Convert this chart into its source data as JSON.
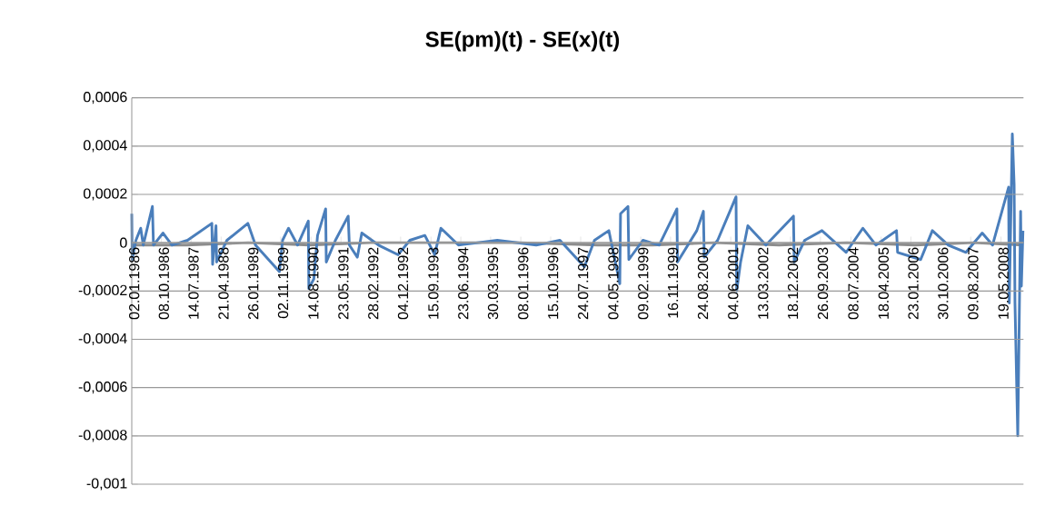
{
  "chart_data": {
    "type": "line",
    "title": "SE(pm)(t) - SE(x)(t)",
    "xlim": [
      "1986-01-02",
      "2008-12-17"
    ],
    "xticks": [
      {
        "value": "1986-01-02",
        "label": "02.01.1986"
      },
      {
        "value": "1986-10-08",
        "label": "08.10.1986"
      },
      {
        "value": "1987-07-14",
        "label": "14.07.1987"
      },
      {
        "value": "1988-04-21",
        "label": "21.04.1988"
      },
      {
        "value": "1989-01-26",
        "label": "26.01.1989"
      },
      {
        "value": "1989-11-02",
        "label": "02.11.1989"
      },
      {
        "value": "1990-08-14",
        "label": "14.08.1990"
      },
      {
        "value": "1991-05-23",
        "label": "23.05.1991"
      },
      {
        "value": "1992-02-28",
        "label": "28.02.1992"
      },
      {
        "value": "1992-12-04",
        "label": "04.12.1992"
      },
      {
        "value": "1993-09-15",
        "label": "15.09.1993"
      },
      {
        "value": "1994-06-23",
        "label": "23.06.1994"
      },
      {
        "value": "1995-03-30",
        "label": "30.03.1995"
      },
      {
        "value": "1996-01-08",
        "label": "08.01.1996"
      },
      {
        "value": "1996-10-15",
        "label": "15.10.1996"
      },
      {
        "value": "1997-07-24",
        "label": "24.07.1997"
      },
      {
        "value": "1998-05-04",
        "label": "04.05.1998"
      },
      {
        "value": "1999-02-09",
        "label": "09.02.1999"
      },
      {
        "value": "1999-11-16",
        "label": "16.11.1999"
      },
      {
        "value": "2000-08-24",
        "label": "24.08.2000"
      },
      {
        "value": "2001-06-04",
        "label": "04.06.2001"
      },
      {
        "value": "2002-03-13",
        "label": "13.03.2002"
      },
      {
        "value": "2002-12-18",
        "label": "18.12.2002"
      },
      {
        "value": "2003-09-26",
        "label": "26.09.2003"
      },
      {
        "value": "2004-07-08",
        "label": "08.07.2004"
      },
      {
        "value": "2005-04-18",
        "label": "18.04.2005"
      },
      {
        "value": "2006-01-23",
        "label": "23.01.2006"
      },
      {
        "value": "2006-10-30",
        "label": "30.10.2006"
      },
      {
        "value": "2007-08-09",
        "label": "09.08.2007"
      },
      {
        "value": "2008-05-19",
        "label": "19.05.2008"
      }
    ],
    "ylim": [
      -0.001,
      0.0006
    ],
    "yticks": [
      {
        "value": -0.001,
        "label": "-0,001"
      },
      {
        "value": -0.0008,
        "label": "-0,0008"
      },
      {
        "value": -0.0006,
        "label": "-0,0006"
      },
      {
        "value": -0.0004,
        "label": "-0,0004"
      },
      {
        "value": -0.0002,
        "label": "-0,0002"
      },
      {
        "value": 0,
        "label": "0"
      },
      {
        "value": 0.0002,
        "label": "0,0002"
      },
      {
        "value": 0.0004,
        "label": "0,0004"
      },
      {
        "value": 0.0006,
        "label": "0,0006"
      }
    ],
    "grid": "y",
    "marker": "none",
    "line_style": "solid",
    "series": [
      {
        "color": "#8c8c8c",
        "x": [
          "1986-01-02",
          "1987-06-01",
          "1989-01-01",
          "1990-08-01",
          "1992-03-01",
          "1994-01-01",
          "1996-01-01",
          "1998-01-01",
          "1999-06-01",
          "2001-01-01",
          "2002-09-01",
          "2004-06-01",
          "2006-03-01",
          "2007-09-01",
          "2008-12-12"
        ],
        "values": [
          -1e-05,
          -1e-05,
          0,
          -1e-05,
          0,
          0,
          0,
          -1e-05,
          -1e-05,
          0,
          -1e-05,
          0,
          -1e-05,
          0,
          -1e-05
        ]
      },
      {
        "color": "#4a7ebb",
        "x": [
          "1986-01-02",
          "1986-01-06",
          "1986-02-10",
          "1986-03-27",
          "1986-04-20",
          "1986-07-15",
          "1986-07-25",
          "1986-10-23",
          "1987-01-15",
          "1987-06-10",
          "1988-01-25",
          "1988-02-01",
          "1988-03-04",
          "1988-03-10",
          "1988-06-15",
          "1988-12-29",
          "1989-03-10",
          "1989-10-21",
          "1989-11-20",
          "1990-01-15",
          "1990-04-10",
          "1990-07-20",
          "1990-07-25",
          "1990-09-10",
          "1990-10-15",
          "1990-12-30",
          "1991-01-05",
          "1991-04-01",
          "1991-07-30",
          "1991-08-10",
          "1991-10-24",
          "1991-12-05",
          "1992-05-10",
          "1992-11-11",
          "1993-03-01",
          "1993-07-20",
          "1993-10-20",
          "1993-12-18",
          "1994-06-01",
          "1995-06-01",
          "1996-06-01",
          "1997-01-10",
          "1997-08-28",
          "1997-12-01",
          "1998-04-15",
          "1998-07-27",
          "1998-08-03",
          "1998-10-12",
          "1998-10-20",
          "1999-03-01",
          "1999-08-01",
          "2000-01-15",
          "2000-01-20",
          "2000-07-20",
          "2000-09-20",
          "2000-09-28",
          "2001-02-01",
          "2001-07-24",
          "2001-07-30",
          "2001-09-05",
          "2001-11-12",
          "2002-05-01",
          "2003-01-15",
          "2003-01-22",
          "2003-05-01",
          "2003-10-10",
          "2004-05-25",
          "2004-10-28",
          "2005-03-01",
          "2005-09-10",
          "2005-09-20",
          "2006-04-25",
          "2006-08-13",
          "2007-01-10",
          "2007-06-25",
          "2007-11-25",
          "2008-03-01",
          "2008-07-30",
          "2008-08-05",
          "2008-09-03",
          "2008-09-20",
          "2008-09-28",
          "2008-10-24",
          "2008-11-20",
          "2008-11-27",
          "2008-12-12"
        ],
        "values": [
          0.00012,
          -7e-05,
          1e-05,
          6e-05,
          -1e-05,
          0.00015,
          -1e-05,
          4e-05,
          -1e-05,
          1e-05,
          8e-05,
          -9e-05,
          7e-05,
          -8e-05,
          1e-05,
          8e-05,
          -1e-05,
          -0.00012,
          1e-05,
          6e-05,
          -1e-05,
          9e-05,
          -0.00019,
          -0.00015,
          3e-05,
          0.00014,
          -8e-05,
          1e-05,
          0.00011,
          -1e-05,
          -6e-05,
          4e-05,
          -1e-05,
          -5e-05,
          1e-05,
          3e-05,
          -5e-05,
          6e-05,
          -1e-05,
          1e-05,
          -1e-05,
          1e-05,
          -0.0001,
          1e-05,
          5e-05,
          -0.00017,
          0.00012,
          0.00015,
          -7e-05,
          1e-05,
          -1e-05,
          0.00014,
          -8e-05,
          5e-05,
          0.00013,
          -6e-05,
          1e-05,
          0.00019,
          -0.0002,
          -8e-05,
          7e-05,
          -1e-05,
          0.00011,
          -8e-05,
          1e-05,
          5e-05,
          -4e-05,
          6e-05,
          -1e-05,
          5e-05,
          -4e-05,
          -7e-05,
          5e-05,
          -1e-05,
          -4e-05,
          4e-05,
          -1e-05,
          0.00023,
          -0.00025,
          0.00045,
          0.00024,
          -0.00025,
          -0.0008,
          0.00013,
          -0.00018,
          5e-05
        ]
      }
    ]
  }
}
